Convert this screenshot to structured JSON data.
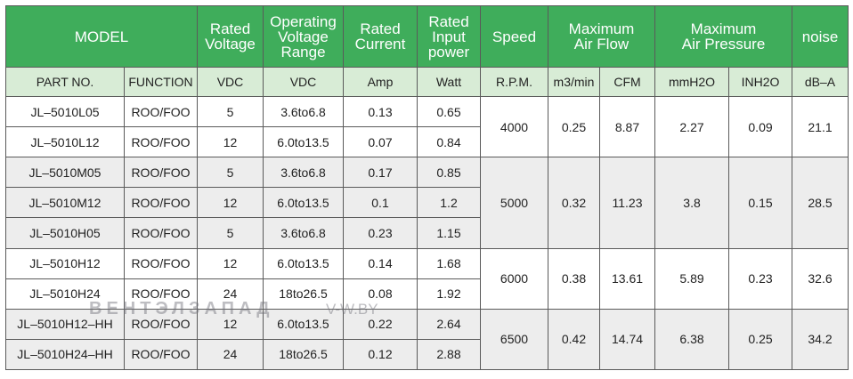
{
  "header": {
    "model": "MODEL",
    "rated_voltage": "Rated\nVoltage",
    "operating_voltage_range": "Operating\nVoltage\nRange",
    "rated_current": "Rated\nCurrent",
    "rated_input_power": "Rated\nInput\npower",
    "speed": "Speed",
    "max_air_flow": "Maximum\nAir Flow",
    "max_air_pressure": "Maximum\nAir Pressure",
    "noise": "noise"
  },
  "subheader": {
    "part_no": "PART NO.",
    "function": "FUNCTION",
    "vdc": "VDC",
    "vdc_range": "VDC",
    "amp": "Amp",
    "watt": "Watt",
    "rpm": "R.P.M.",
    "m3min": "m3/min",
    "cfm": "CFM",
    "mmh2o": "mmH2O",
    "inh2o": "INH2O",
    "dba": "dB–A"
  },
  "rows": [
    {
      "part": "JL–5010L05",
      "func": "ROO/FOO",
      "vdc": "5",
      "range": "3.6to6.8",
      "amp": "0.13",
      "watt": "0.65"
    },
    {
      "part": "JL–5010L12",
      "func": "ROO/FOO",
      "vdc": "12",
      "range": "6.0to13.5",
      "amp": "0.07",
      "watt": "0.84"
    },
    {
      "part": "JL–5010M05",
      "func": "ROO/FOO",
      "vdc": "5",
      "range": "3.6to6.8",
      "amp": "0.17",
      "watt": "0.85"
    },
    {
      "part": "JL–5010M12",
      "func": "ROO/FOO",
      "vdc": "12",
      "range": "6.0to13.5",
      "amp": "0.1",
      "watt": "1.2"
    },
    {
      "part": "JL–5010H05",
      "func": "ROO/FOO",
      "vdc": "5",
      "range": "3.6to6.8",
      "amp": "0.23",
      "watt": "1.15"
    },
    {
      "part": "JL–5010H12",
      "func": "ROO/FOO",
      "vdc": "12",
      "range": "6.0to13.5",
      "amp": "0.14",
      "watt": "1.68"
    },
    {
      "part": "JL–5010H24",
      "func": "ROO/FOO",
      "vdc": "24",
      "range": "18to26.5",
      "amp": "0.08",
      "watt": "1.92"
    },
    {
      "part": "JL–5010H12–HH",
      "func": "ROO/FOO",
      "vdc": "12",
      "range": "6.0to13.5",
      "amp": "0.22",
      "watt": "2.64"
    },
    {
      "part": "JL–5010H24–HH",
      "func": "ROO/FOO",
      "vdc": "24",
      "range": "18to26.5",
      "amp": "0.12",
      "watt": "2.88"
    }
  ],
  "groups": [
    {
      "rpm": "4000",
      "m3min": "0.25",
      "cfm": "8.87",
      "mmh2o": "2.27",
      "inh2o": "0.09",
      "dba": "21.1"
    },
    {
      "rpm": "5000",
      "m3min": "0.32",
      "cfm": "11.23",
      "mmh2o": "3.8",
      "inh2o": "0.15",
      "dba": "28.5"
    },
    {
      "rpm": "6000",
      "m3min": "0.38",
      "cfm": "13.61",
      "mmh2o": "5.89",
      "inh2o": "0.23",
      "dba": "32.6"
    },
    {
      "rpm": "6500",
      "m3min": "0.42",
      "cfm": "14.74",
      "mmh2o": "6.38",
      "inh2o": "0.25",
      "dba": "34.2"
    }
  ],
  "watermark": {
    "text": "ВЕНТЭЛЗАПАД",
    "site": "V-W.BY"
  },
  "colors": {
    "header_green": "#3fad5b",
    "subheader_green": "#d8ecd6",
    "row_grey": "#ededed"
  }
}
